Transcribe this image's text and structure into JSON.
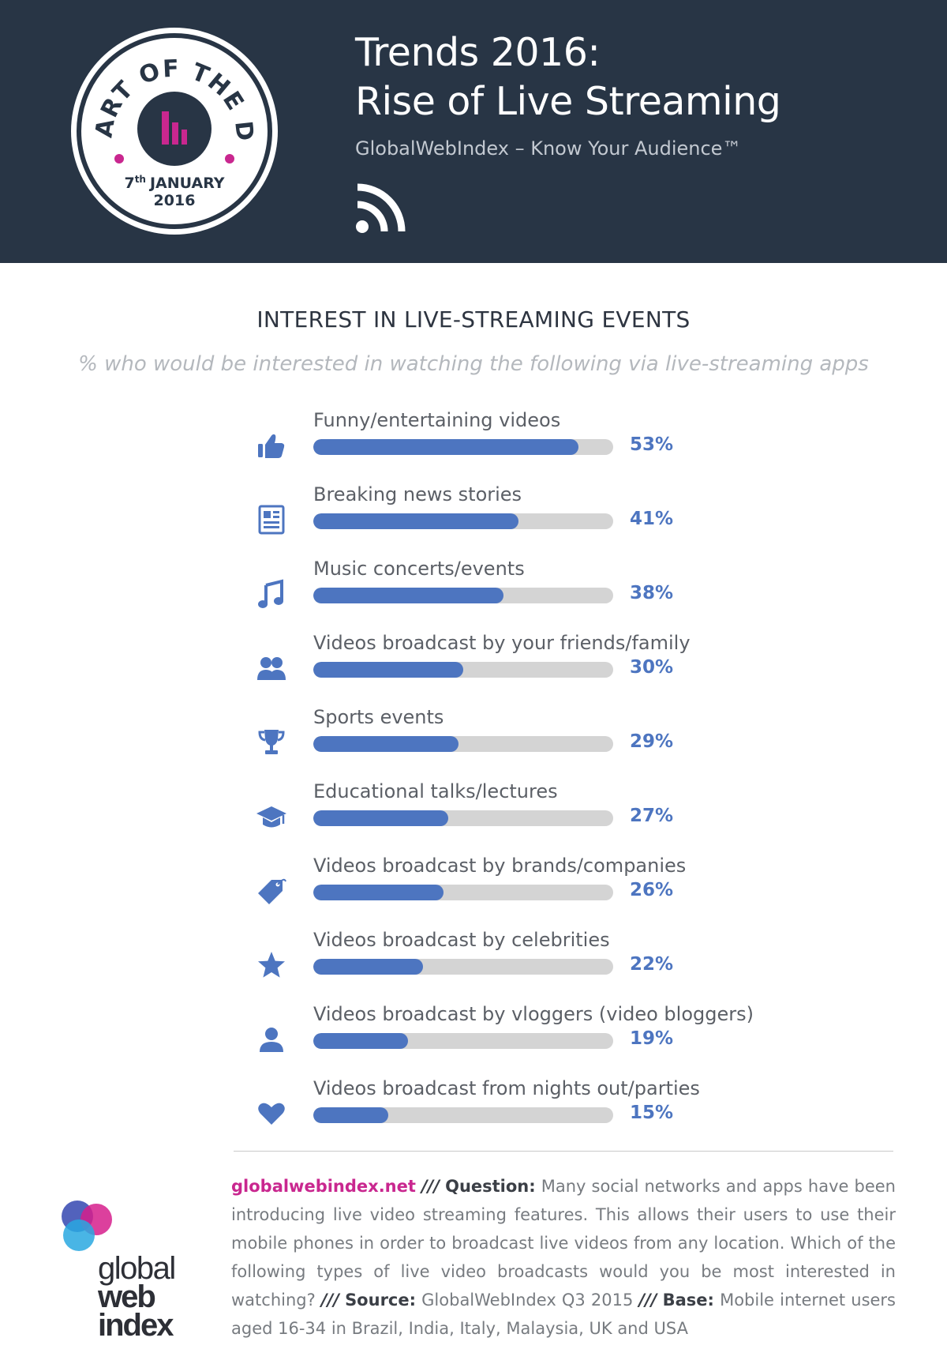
{
  "header": {
    "badge": {
      "arc_text": "CHART OF THE DAY",
      "date_day": "7",
      "date_suffix": "th",
      "date_month": "JANUARY",
      "date_year": "2016"
    },
    "title_line1": "Trends 2016:",
    "title_line2": "Rise of Live Streaming",
    "subtitle": "GlobalWebIndex – Know Your Audience™"
  },
  "chart_data": {
    "type": "bar",
    "orientation": "horizontal",
    "title": "INTEREST IN LIVE-STREAMING EVENTS",
    "subtitle": "% who would be interested in watching the following via live-streaming apps",
    "categories": [
      "Funny/entertaining videos",
      "Breaking news stories",
      "Music concerts/events",
      "Videos broadcast by your friends/family",
      "Sports events",
      "Educational talks/lectures",
      "Videos broadcast by brands/companies",
      "Videos broadcast by celebrities",
      "Videos broadcast by vloggers (video bloggers)",
      "Videos broadcast from nights out/parties"
    ],
    "values": [
      53,
      41,
      38,
      30,
      29,
      27,
      26,
      22,
      19,
      15
    ],
    "value_labels": [
      "53%",
      "41%",
      "38%",
      "30%",
      "29%",
      "27%",
      "26%",
      "22%",
      "19%",
      "15%"
    ],
    "icons": [
      "thumbs-up-icon",
      "newspaper-icon",
      "music-note-icon",
      "users-icon",
      "trophy-icon",
      "graduation-cap-icon",
      "tag-icon",
      "star-icon",
      "user-icon",
      "heart-icon"
    ],
    "xlim": [
      0,
      60
    ],
    "grid": false,
    "colors": {
      "bar": "#4d75c0",
      "track": "#d4d4d4"
    }
  },
  "footer": {
    "logo_lines": [
      "global",
      "web",
      "index"
    ],
    "site": "globalwebindex.net",
    "separator": "///",
    "question_label": "Question:",
    "question_text": "Many social networks and apps have been introducing live video streaming features. This allows their users to use their mobile phones in order to broadcast live videos from any location. Which of the following types of live video broadcasts would you be most interested in watching?",
    "source_label": "Source:",
    "source_text": "GlobalWebIndex Q3 2015",
    "base_label": "Base:",
    "base_text": "Mobile internet users aged 16-34 in Brazil, India, Italy, Malaysia, UK and USA"
  },
  "colors": {
    "header_bg": "#283545",
    "accent_pink": "#c9278f",
    "accent_blue": "#4d75c0"
  }
}
